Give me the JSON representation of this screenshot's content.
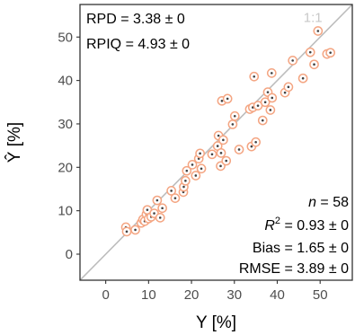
{
  "chart_data": {
    "type": "scatter",
    "xlabel": "Y [%]",
    "ylabel": "Ŷ [%]",
    "xlim": [
      -6,
      57.5
    ],
    "ylim": [
      -6,
      57.5
    ],
    "x_ticks": [
      0,
      10,
      20,
      30,
      40,
      50
    ],
    "y_ticks": [
      0,
      10,
      20,
      30,
      40,
      50
    ],
    "grid": false,
    "identity_line_label": "1:1",
    "stats_top": [
      "RPD = 3.38 ± 0",
      "RPIQ = 4.93 ± 0"
    ],
    "stats_bottom": {
      "n_label": "n",
      "n_value": " = 58",
      "r2_label": "R",
      "r2_sup": "2",
      "r2_value": " = 0.93 ± 0",
      "bias": "Bias = 1.65 ± 0",
      "rmse": "RMSE = 3.89 ± 0"
    },
    "colors": {
      "marker_outer": "#f4a582",
      "marker_inner": "#404040",
      "identity_line": "#bdbdbd",
      "frame": "#333333"
    },
    "points": [
      [
        4.7,
        6.2
      ],
      [
        4.9,
        5.2
      ],
      [
        6.9,
        5.6
      ],
      [
        8.3,
        7.2
      ],
      [
        8.7,
        8.0
      ],
      [
        9.1,
        7.6
      ],
      [
        9.5,
        9.2
      ],
      [
        9.7,
        10.2
      ],
      [
        10.0,
        8.2
      ],
      [
        10.6,
        8.6
      ],
      [
        11.3,
        9.4
      ],
      [
        12.0,
        12.4
      ],
      [
        12.7,
        8.4
      ],
      [
        13.2,
        10.6
      ],
      [
        15.3,
        14.6
      ],
      [
        16.2,
        12.9
      ],
      [
        18.1,
        14.3
      ],
      [
        18.2,
        15.5
      ],
      [
        18.6,
        16.9
      ],
      [
        18.9,
        19.2
      ],
      [
        20.2,
        20.6
      ],
      [
        21.0,
        18.1
      ],
      [
        21.7,
        22.0
      ],
      [
        22.0,
        23.2
      ],
      [
        22.3,
        19.7
      ],
      [
        24.8,
        23.0
      ],
      [
        26.1,
        24.9
      ],
      [
        26.3,
        27.3
      ],
      [
        26.8,
        20.3
      ],
      [
        26.9,
        23.3
      ],
      [
        27.1,
        35.3
      ],
      [
        27.4,
        26.3
      ],
      [
        28.1,
        21.5
      ],
      [
        28.4,
        35.8
      ],
      [
        29.6,
        29.9
      ],
      [
        30.1,
        31.8
      ],
      [
        31.1,
        24.1
      ],
      [
        33.6,
        33.4
      ],
      [
        34.0,
        24.8
      ],
      [
        34.3,
        33.8
      ],
      [
        34.6,
        40.9
      ],
      [
        35.0,
        25.8
      ],
      [
        35.5,
        34.2
      ],
      [
        36.6,
        30.8
      ],
      [
        37.2,
        35.0
      ],
      [
        37.8,
        37.3
      ],
      [
        38.4,
        33.2
      ],
      [
        38.7,
        41.7
      ],
      [
        38.8,
        36.0
      ],
      [
        41.8,
        37.2
      ],
      [
        42.6,
        38.5
      ],
      [
        43.6,
        44.6
      ],
      [
        46.0,
        40.5
      ],
      [
        47.7,
        46.5
      ],
      [
        48.6,
        43.7
      ],
      [
        49.5,
        51.4
      ],
      [
        51.6,
        46.1
      ],
      [
        52.4,
        46.4
      ]
    ]
  }
}
